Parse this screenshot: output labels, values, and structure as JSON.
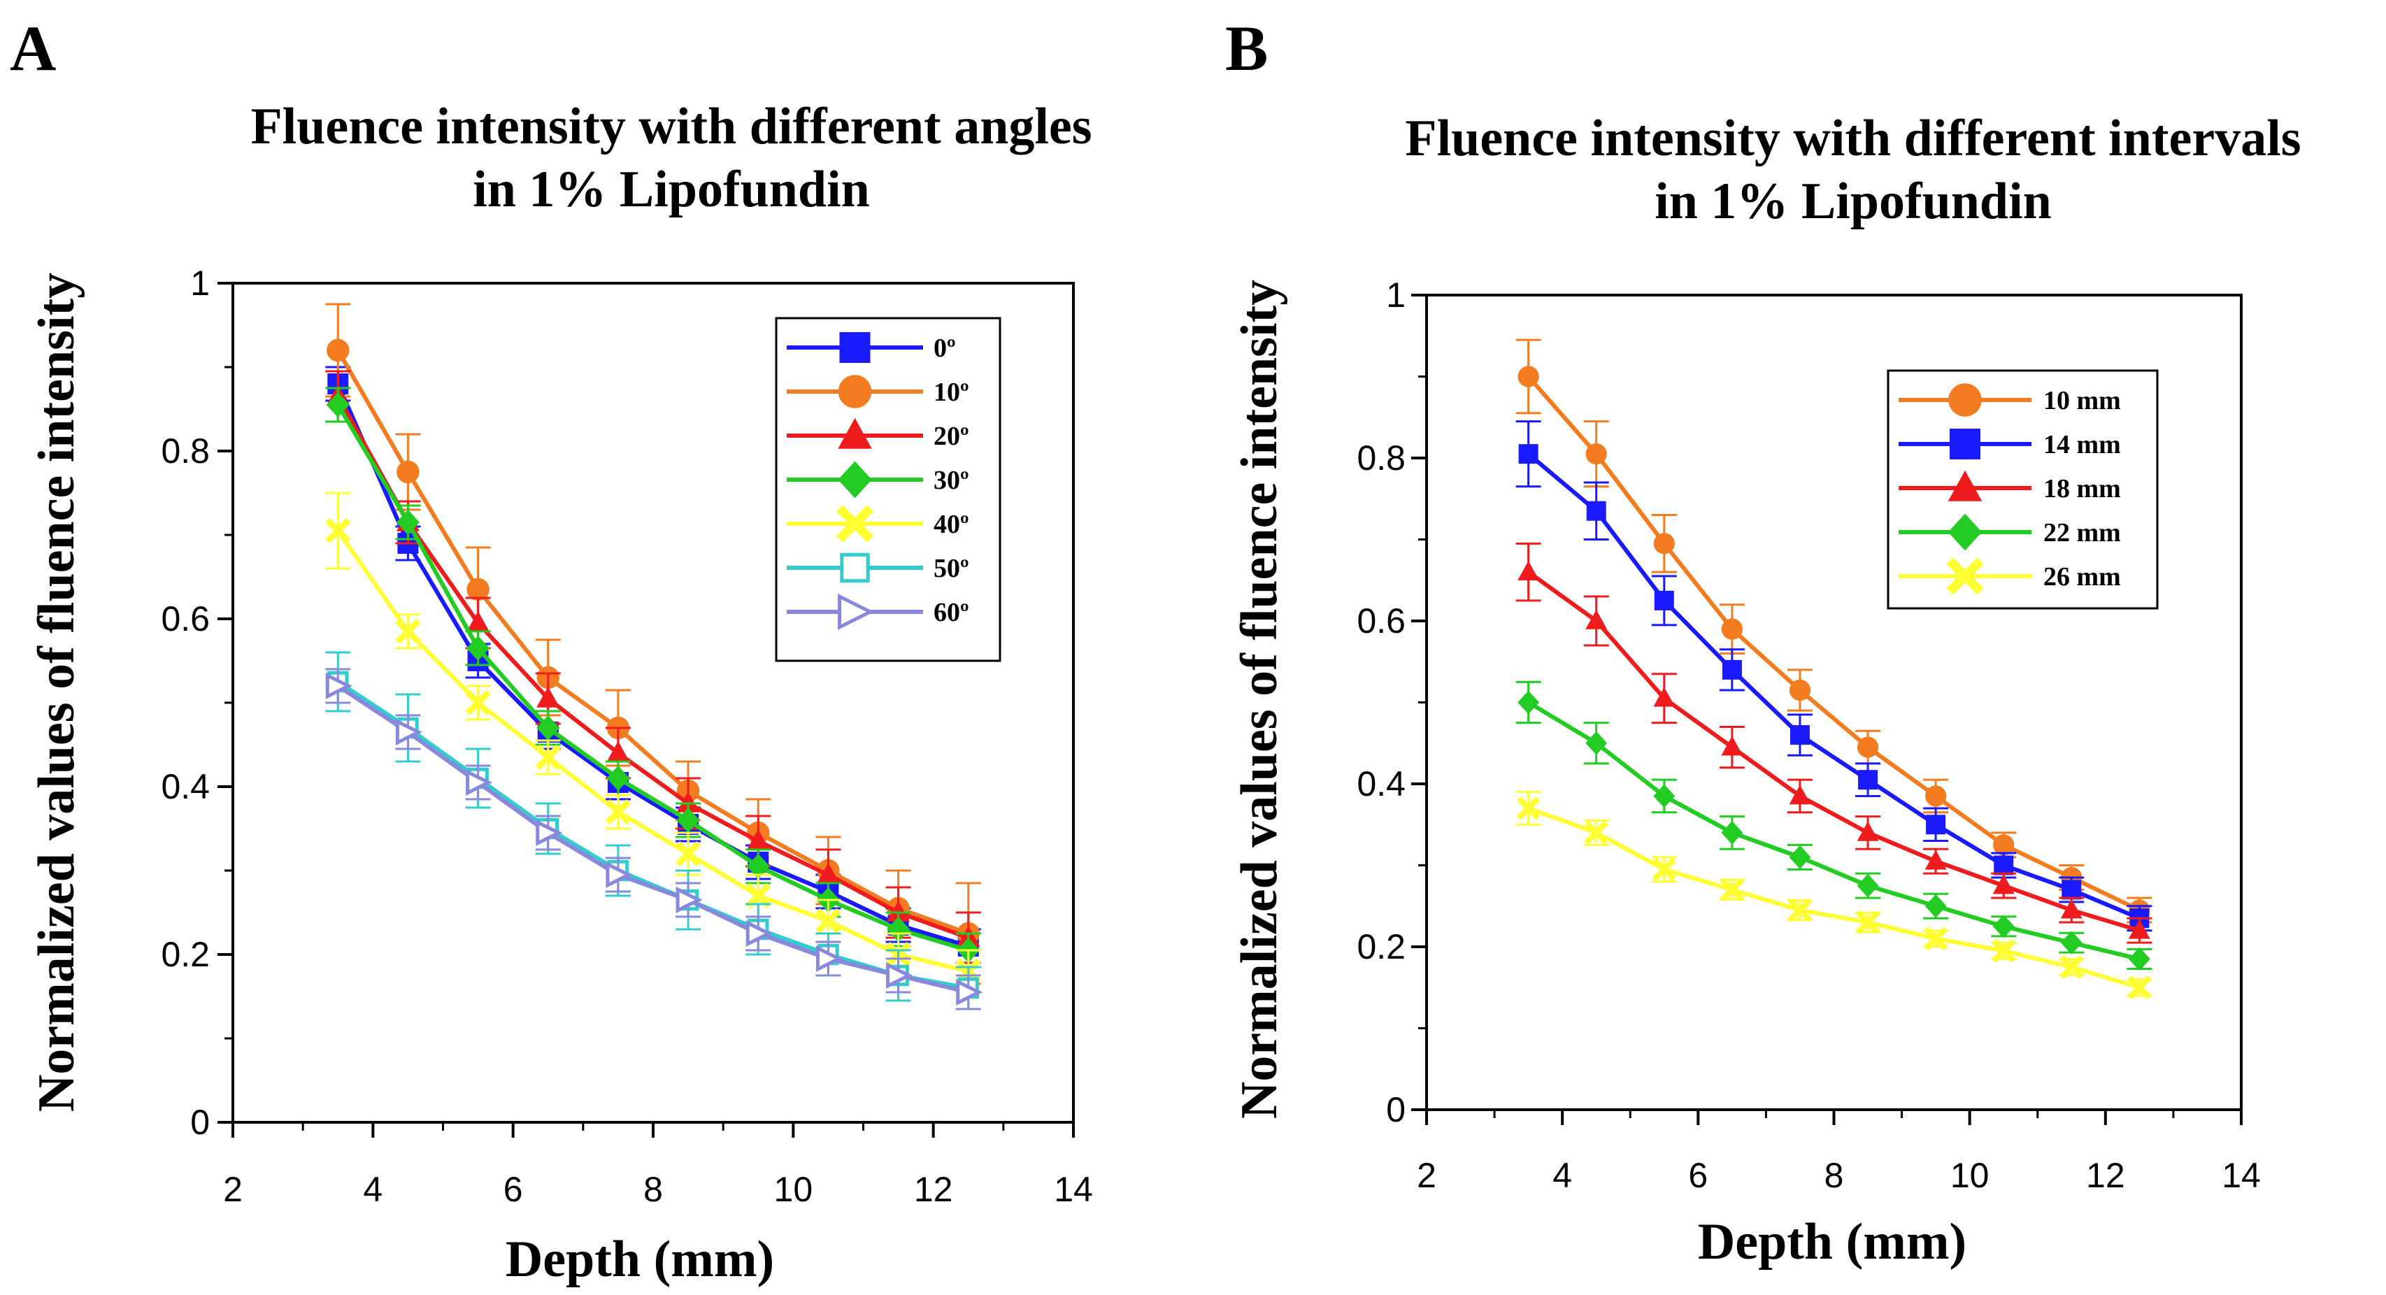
{
  "chart_data": [
    {
      "type": "line",
      "panel_label": "A",
      "title_lines": [
        "Fluence intensity with different angles",
        "in 1% Lipofundin"
      ],
      "xlabel": "Depth (mm)",
      "ylabel": "Normalized values of fluence intensity",
      "xlim": [
        2,
        14
      ],
      "ylim": [
        0,
        1
      ],
      "xticks": [
        "2",
        "4",
        "6",
        "8",
        "10",
        "12",
        "14"
      ],
      "yticks": [
        "0",
        "0.2",
        "0.4",
        "0.6",
        "0.8",
        "1"
      ],
      "legend_position": "top-right",
      "x": [
        3.5,
        4.5,
        5.5,
        6.5,
        7.5,
        8.5,
        9.5,
        10.5,
        11.5,
        12.5
      ],
      "series": [
        {
          "name": "0º",
          "color": "#1a1aff",
          "marker": "square-filled",
          "values": [
            0.88,
            0.69,
            0.55,
            0.465,
            0.405,
            0.355,
            0.31,
            0.275,
            0.235,
            0.21
          ],
          "errors": [
            0.02,
            0.02,
            0.02,
            0.02,
            0.02,
            0.02,
            0.02,
            0.02,
            0.02,
            0.02
          ]
        },
        {
          "name": "10º",
          "color": "#f47c20",
          "marker": "circle-filled",
          "values": [
            0.92,
            0.775,
            0.635,
            0.53,
            0.47,
            0.395,
            0.345,
            0.3,
            0.255,
            0.225
          ],
          "errors": [
            0.055,
            0.045,
            0.05,
            0.045,
            0.045,
            0.035,
            0.04,
            0.04,
            0.045,
            0.06
          ]
        },
        {
          "name": "20º",
          "color": "#ee1c1c",
          "marker": "triangle-filled",
          "values": [
            0.865,
            0.715,
            0.595,
            0.505,
            0.44,
            0.38,
            0.335,
            0.295,
            0.25,
            0.22
          ],
          "errors": [
            0.03,
            0.025,
            0.03,
            0.03,
            0.03,
            0.03,
            0.03,
            0.03,
            0.03,
            0.03
          ]
        },
        {
          "name": "30º",
          "color": "#22cc22",
          "marker": "diamond-filled",
          "values": [
            0.855,
            0.715,
            0.565,
            0.47,
            0.41,
            0.36,
            0.305,
            0.265,
            0.23,
            0.205
          ],
          "errors": [
            0.02,
            0.02,
            0.02,
            0.02,
            0.02,
            0.02,
            0.02,
            0.02,
            0.02,
            0.02
          ]
        },
        {
          "name": "40º",
          "color": "#ffff33",
          "marker": "x-cross",
          "values": [
            0.705,
            0.585,
            0.5,
            0.435,
            0.37,
            0.32,
            0.27,
            0.24,
            0.2,
            0.18
          ],
          "errors": [
            0.045,
            0.02,
            0.02,
            0.02,
            0.02,
            0.025,
            0.025,
            0.025,
            0.025,
            0.025
          ]
        },
        {
          "name": "50º",
          "color": "#33cccc",
          "marker": "square-open",
          "values": [
            0.525,
            0.47,
            0.41,
            0.35,
            0.3,
            0.265,
            0.23,
            0.2,
            0.175,
            0.16
          ],
          "errors": [
            0.035,
            0.04,
            0.035,
            0.03,
            0.03,
            0.035,
            0.03,
            0.025,
            0.03,
            0.025
          ]
        },
        {
          "name": "60º",
          "color": "#8888dd",
          "marker": "triangle-right-open",
          "values": [
            0.52,
            0.465,
            0.405,
            0.345,
            0.295,
            0.265,
            0.225,
            0.195,
            0.175,
            0.155
          ],
          "errors": [
            0.02,
            0.02,
            0.02,
            0.02,
            0.02,
            0.02,
            0.02,
            0.02,
            0.02,
            0.02
          ]
        }
      ]
    },
    {
      "type": "line",
      "panel_label": "B",
      "title_lines": [
        "Fluence intensity with different intervals",
        "in 1% Lipofundin"
      ],
      "xlabel": "Depth (mm)",
      "ylabel": "Normalized values of fluence intensity",
      "xlim": [
        2,
        14
      ],
      "ylim": [
        0,
        1
      ],
      "xticks": [
        "2",
        "4",
        "6",
        "8",
        "10",
        "12",
        "14"
      ],
      "yticks": [
        "0",
        "0.2",
        "0.4",
        "0.6",
        "0.8",
        "1"
      ],
      "legend_position": "top-right",
      "x": [
        3.5,
        4.5,
        5.5,
        6.5,
        7.5,
        8.5,
        9.5,
        10.5,
        11.5,
        12.5
      ],
      "series": [
        {
          "name": "10 mm",
          "color": "#f47c20",
          "marker": "circle-filled",
          "values": [
            0.9,
            0.805,
            0.695,
            0.59,
            0.515,
            0.445,
            0.385,
            0.325,
            0.285,
            0.245
          ],
          "errors": [
            0.045,
            0.04,
            0.035,
            0.03,
            0.025,
            0.02,
            0.02,
            0.015,
            0.015,
            0.015
          ]
        },
        {
          "name": "14 mm",
          "color": "#1a1aff",
          "marker": "square-filled",
          "values": [
            0.805,
            0.735,
            0.625,
            0.54,
            0.46,
            0.405,
            0.35,
            0.3,
            0.27,
            0.235
          ],
          "errors": [
            0.04,
            0.035,
            0.03,
            0.025,
            0.025,
            0.02,
            0.02,
            0.015,
            0.015,
            0.015
          ]
        },
        {
          "name": "18 mm",
          "color": "#ee1c1c",
          "marker": "triangle-filled",
          "values": [
            0.66,
            0.6,
            0.505,
            0.445,
            0.385,
            0.34,
            0.305,
            0.275,
            0.245,
            0.22
          ],
          "errors": [
            0.035,
            0.03,
            0.03,
            0.025,
            0.02,
            0.02,
            0.015,
            0.015,
            0.015,
            0.015
          ]
        },
        {
          "name": "22 mm",
          "color": "#22cc22",
          "marker": "diamond-filled",
          "values": [
            0.5,
            0.45,
            0.385,
            0.34,
            0.31,
            0.275,
            0.25,
            0.225,
            0.205,
            0.185
          ],
          "errors": [
            0.025,
            0.025,
            0.02,
            0.02,
            0.015,
            0.015,
            0.015,
            0.012,
            0.012,
            0.012
          ]
        },
        {
          "name": "26 mm",
          "color": "#ffff33",
          "marker": "x-cross",
          "values": [
            0.37,
            0.34,
            0.295,
            0.27,
            0.245,
            0.23,
            0.21,
            0.195,
            0.175,
            0.15
          ],
          "errors": [
            0.02,
            0.015,
            0.015,
            0.012,
            0.012,
            0.012,
            0.01,
            0.01,
            0.01,
            0.01
          ]
        }
      ]
    }
  ]
}
